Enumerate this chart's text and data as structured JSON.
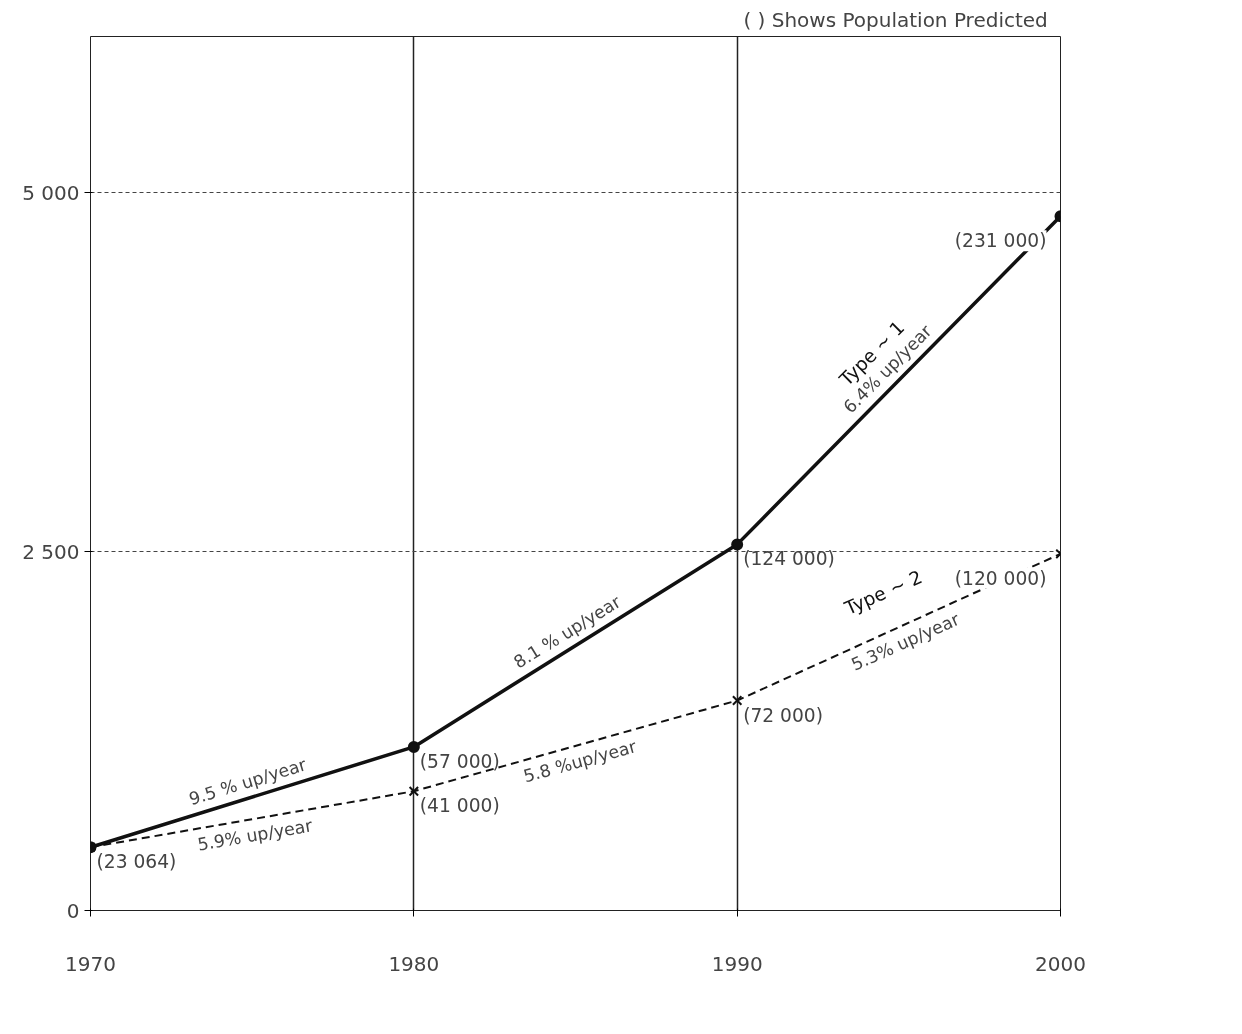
{
  "chart_data": {
    "type": "line",
    "title": "(   ) Shows Population Predicted",
    "x": [
      1970,
      1980,
      1990,
      2000
    ],
    "series": [
      {
        "name": "Type ~ 1",
        "color": "#111111",
        "values": [
          441,
          1140,
          2551,
          4838
        ],
        "marker": "circle",
        "line_style": "solid"
      },
      {
        "name": "Type ~ 2",
        "color": "#111111",
        "values": [
          441,
          831,
          1463,
          2485
        ],
        "marker": "cross",
        "line_style": "dashed"
      }
    ],
    "xlim": [
      1970,
      2000
    ],
    "xticks": [
      1970,
      1980,
      1990,
      2000
    ],
    "ylim": [
      0,
      6090
    ],
    "yticks": [
      0,
      {
        "value": 2500,
        "label": "2 500"
      },
      {
        "value": 5000,
        "label": "5 000"
      }
    ],
    "grid": true,
    "annotations": [
      {
        "text": "(23 064)",
        "x": 1970,
        "y": 441
      },
      {
        "text": "(57 000)",
        "x": 1980,
        "y": 1140
      },
      {
        "text": "(41 000)",
        "x": 1980,
        "y": 831
      },
      {
        "text": "(124 000)",
        "x": 1990,
        "y": 2551
      },
      {
        "text": "(72 000)",
        "x": 1990,
        "y": 1463
      },
      {
        "text": "(231 000)",
        "x": 2000,
        "y": 4838
      },
      {
        "text": "(120 000)",
        "x": 2000,
        "y": 2485
      },
      "9.5 % up/year",
      "5.9% up/year",
      "8.1 % up/year",
      "5.8 %up/year",
      "6.4% up/year",
      "5.3% up/year"
    ]
  }
}
